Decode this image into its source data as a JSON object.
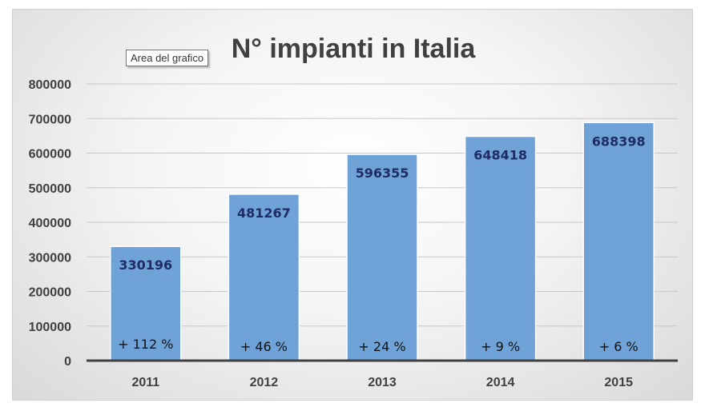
{
  "tooltip": "Area del grafico",
  "chart_data": {
    "type": "bar",
    "title": "N° impianti in Italia",
    "xlabel": "",
    "ylabel": "",
    "categories": [
      "2011",
      "2012",
      "2013",
      "2014",
      "2015"
    ],
    "values": [
      330196,
      481267,
      596355,
      648418,
      688398
    ],
    "data_labels": [
      "330196",
      "481267",
      "596355",
      "648418",
      "688398"
    ],
    "growth_labels": [
      "+ 112 %",
      "+ 46 %",
      "+ 24 %",
      "+ 9 %",
      "+ 6 %"
    ],
    "ylim": [
      0,
      800000
    ],
    "yticks": [
      "0",
      "100000",
      "200000",
      "300000",
      "400000",
      "500000",
      "600000",
      "700000",
      "800000"
    ],
    "grid": true,
    "legend": "none",
    "bar_color": "#6fa3d8"
  }
}
